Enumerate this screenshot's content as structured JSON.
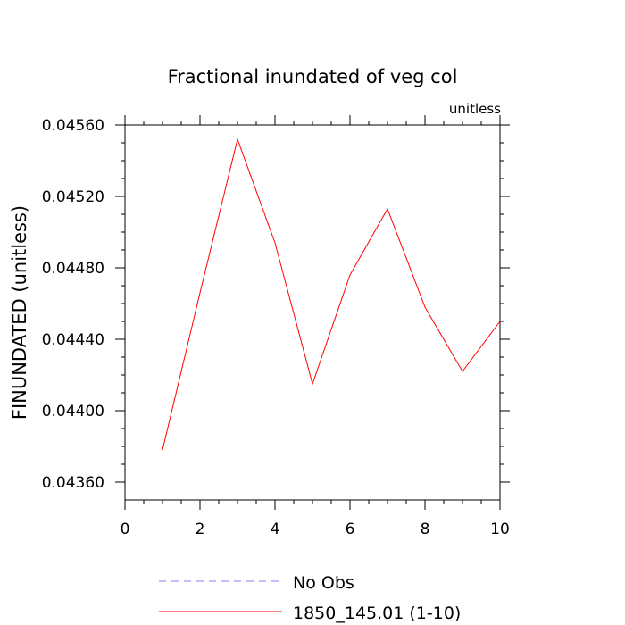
{
  "chart_data": {
    "type": "line",
    "title": "Fractional inundated of veg col",
    "units_label": "unitless",
    "ylabel": "FINUNDATED  (unitless)",
    "xlabel": "",
    "xlim": [
      0,
      10
    ],
    "ylim": [
      0.0435,
      0.0456
    ],
    "x_ticks": [
      0,
      2,
      4,
      6,
      8,
      10
    ],
    "x_tick_labels": [
      "0",
      "2",
      "4",
      "6",
      "8",
      "10"
    ],
    "y_ticks": [
      0.0436,
      0.044,
      0.0444,
      0.0448,
      0.0452,
      0.0456
    ],
    "y_tick_labels": [
      "0.04360",
      "0.04400",
      "0.04440",
      "0.04480",
      "0.04520",
      "0.04560"
    ],
    "grid": false,
    "legend_position": "bottom",
    "series": [
      {
        "name": "No Obs",
        "color": "#8080ff",
        "style": "dashed",
        "x": [],
        "y": []
      },
      {
        "name": "1850_145.01 (1-10)",
        "color": "#ff0000",
        "style": "solid",
        "x": [
          1,
          2,
          3,
          4,
          5,
          6,
          7,
          8,
          9,
          10
        ],
        "y": [
          0.04378,
          0.04466,
          0.04552,
          0.04494,
          0.04415,
          0.04476,
          0.04513,
          0.04458,
          0.04422,
          0.0445
        ]
      }
    ]
  }
}
